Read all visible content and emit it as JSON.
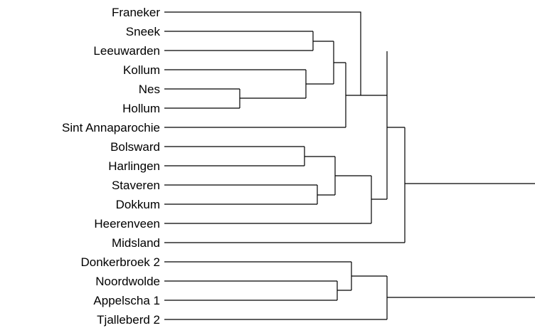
{
  "dendrogram": {
    "line_color": "#000000",
    "leaves": [
      "Franeker",
      "Sneek",
      "Leeuwarden",
      "Kollum",
      "Nes",
      "Hollum",
      "Sint Annaparochie",
      "Bolsward",
      "Harlingen",
      "Staveren",
      "Dokkum",
      "Heerenveen",
      "Midsland",
      "Donkerbroek 2",
      "Noordwolde",
      "Appelscha 1",
      "Tjalleberd 2"
    ]
  }
}
